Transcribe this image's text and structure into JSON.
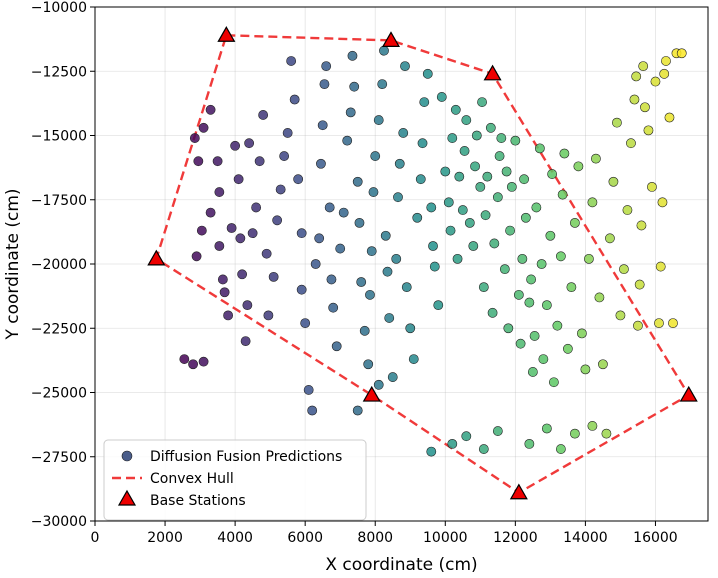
{
  "chart_data": {
    "type": "scatter",
    "title": "",
    "xlabel": "X coordinate (cm)",
    "ylabel": "Y coordinate (cm)",
    "xlim": [
      0,
      17500
    ],
    "ylim": [
      -30000,
      -10000
    ],
    "xticks": [
      0,
      2000,
      4000,
      6000,
      8000,
      10000,
      12000,
      14000,
      16000
    ],
    "yticks": [
      -30000,
      -27500,
      -25000,
      -22500,
      -20000,
      -17500,
      -15000,
      -12500,
      -10000
    ],
    "xtick_labels": [
      "0",
      "2000",
      "4000",
      "6000",
      "8000",
      "10000",
      "12000",
      "14000",
      "16000"
    ],
    "ytick_labels": [
      "−30000",
      "−27500",
      "−25000",
      "−22500",
      "−20000",
      "−17500",
      "−15000",
      "−12500",
      "−10000"
    ],
    "grid": true,
    "legend_position": "bottom-left",
    "legend": {
      "predictions": "Diffusion Fusion Predictions",
      "hull": "Convex Hull",
      "stations": "Base Stations"
    },
    "colors": {
      "hull": "#f03a3a",
      "station": "#ee0000",
      "legend_marker": "#4a5d8a",
      "colormap": "viridis"
    },
    "series": [
      {
        "name": "Base Stations",
        "points": [
          [
            3750,
            -11100
          ],
          [
            8450,
            -11300
          ],
          [
            11350,
            -12600
          ],
          [
            16950,
            -25100
          ],
          [
            12100,
            -28900
          ],
          [
            7900,
            -25100
          ],
          [
            1750,
            -19800
          ]
        ]
      },
      {
        "name": "Convex Hull",
        "points": [
          [
            3750,
            -11100
          ],
          [
            8450,
            -11300
          ],
          [
            11350,
            -12600
          ],
          [
            16950,
            -25100
          ],
          [
            12100,
            -28900
          ],
          [
            7900,
            -25100
          ],
          [
            1750,
            -19800
          ],
          [
            3750,
            -11100
          ]
        ]
      },
      {
        "name": "Diffusion Fusion Predictions",
        "note": "color encodes x coordinate (viridis)",
        "points": [
          [
            2550,
            -23700
          ],
          [
            2800,
            -23900
          ],
          [
            3100,
            -23800
          ],
          [
            2900,
            -19700
          ],
          [
            3050,
            -18700
          ],
          [
            3300,
            -18000
          ],
          [
            2950,
            -16000
          ],
          [
            3100,
            -14700
          ],
          [
            2850,
            -15100
          ],
          [
            3300,
            -14000
          ],
          [
            3500,
            -16000
          ],
          [
            3550,
            -17200
          ],
          [
            3700,
            -21100
          ],
          [
            3800,
            -22000
          ],
          [
            3900,
            -18600
          ],
          [
            3550,
            -19300
          ],
          [
            3650,
            -20600
          ],
          [
            4000,
            -15400
          ],
          [
            4100,
            -16700
          ],
          [
            4150,
            -19000
          ],
          [
            4200,
            -20400
          ],
          [
            4300,
            -23000
          ],
          [
            4350,
            -21600
          ],
          [
            4500,
            -18800
          ],
          [
            4600,
            -17800
          ],
          [
            4700,
            -16000
          ],
          [
            4400,
            -15300
          ],
          [
            4800,
            -14200
          ],
          [
            4900,
            -19600
          ],
          [
            4950,
            -22000
          ],
          [
            5100,
            -20500
          ],
          [
            5200,
            -18300
          ],
          [
            5300,
            -17100
          ],
          [
            5400,
            -15800
          ],
          [
            5500,
            -14900
          ],
          [
            5600,
            -12100
          ],
          [
            5700,
            -13600
          ],
          [
            5800,
            -16700
          ],
          [
            5900,
            -18800
          ],
          [
            5900,
            -21000
          ],
          [
            6000,
            -22300
          ],
          [
            6100,
            -24900
          ],
          [
            6200,
            -25700
          ],
          [
            6300,
            -20000
          ],
          [
            6400,
            -19000
          ],
          [
            6450,
            -16100
          ],
          [
            6500,
            -14600
          ],
          [
            6550,
            -13000
          ],
          [
            6600,
            -12300
          ],
          [
            6700,
            -17800
          ],
          [
            6750,
            -20600
          ],
          [
            6800,
            -21700
          ],
          [
            6900,
            -23200
          ],
          [
            7000,
            -19400
          ],
          [
            7100,
            -18000
          ],
          [
            7200,
            -15200
          ],
          [
            7300,
            -14100
          ],
          [
            7350,
            -11900
          ],
          [
            7400,
            -13100
          ],
          [
            7500,
            -16800
          ],
          [
            7550,
            -18400
          ],
          [
            7600,
            -20700
          ],
          [
            7700,
            -22600
          ],
          [
            7800,
            -23900
          ],
          [
            7850,
            -21200
          ],
          [
            7900,
            -19500
          ],
          [
            7950,
            -17200
          ],
          [
            8000,
            -15800
          ],
          [
            8100,
            -14400
          ],
          [
            8200,
            -13000
          ],
          [
            8250,
            -11700
          ],
          [
            8300,
            -18900
          ],
          [
            8350,
            -20300
          ],
          [
            8400,
            -22100
          ],
          [
            8500,
            -24400
          ],
          [
            8600,
            -19800
          ],
          [
            8650,
            -17400
          ],
          [
            8700,
            -16100
          ],
          [
            8800,
            -14900
          ],
          [
            8850,
            -12300
          ],
          [
            8900,
            -20900
          ],
          [
            9000,
            -22500
          ],
          [
            9100,
            -23700
          ],
          [
            9200,
            -18200
          ],
          [
            9300,
            -16700
          ],
          [
            9350,
            -15300
          ],
          [
            9400,
            -13700
          ],
          [
            9500,
            -12600
          ],
          [
            9600,
            -17800
          ],
          [
            9650,
            -19300
          ],
          [
            9700,
            -20100
          ],
          [
            9800,
            -21600
          ],
          [
            9900,
            -13500
          ],
          [
            10000,
            -16400
          ],
          [
            10100,
            -17600
          ],
          [
            10150,
            -18700
          ],
          [
            10200,
            -15100
          ],
          [
            10300,
            -14000
          ],
          [
            10350,
            -19800
          ],
          [
            10400,
            -16600
          ],
          [
            10500,
            -17900
          ],
          [
            10550,
            -15600
          ],
          [
            10600,
            -14400
          ],
          [
            10700,
            -18400
          ],
          [
            10800,
            -19300
          ],
          [
            10850,
            -16200
          ],
          [
            10900,
            -15000
          ],
          [
            11000,
            -17000
          ],
          [
            11050,
            -13700
          ],
          [
            11100,
            -20900
          ],
          [
            11150,
            -18100
          ],
          [
            11200,
            -16600
          ],
          [
            11300,
            -14700
          ],
          [
            11350,
            -21900
          ],
          [
            11400,
            -19200
          ],
          [
            11500,
            -17400
          ],
          [
            11550,
            -15800
          ],
          [
            11600,
            -15100
          ],
          [
            11700,
            -20200
          ],
          [
            11750,
            -16400
          ],
          [
            11800,
            -22500
          ],
          [
            11850,
            -18700
          ],
          [
            11900,
            -17000
          ],
          [
            12000,
            -15200
          ],
          [
            12100,
            -21200
          ],
          [
            12150,
            -23100
          ],
          [
            12200,
            -19800
          ],
          [
            12250,
            -16700
          ],
          [
            12300,
            -18200
          ],
          [
            12400,
            -21500
          ],
          [
            12450,
            -20600
          ],
          [
            12500,
            -24200
          ],
          [
            12550,
            -22800
          ],
          [
            12600,
            -17800
          ],
          [
            12700,
            -15500
          ],
          [
            12750,
            -20000
          ],
          [
            12800,
            -23700
          ],
          [
            12900,
            -21600
          ],
          [
            13000,
            -18900
          ],
          [
            13050,
            -16500
          ],
          [
            13100,
            -24600
          ],
          [
            13200,
            -22400
          ],
          [
            13300,
            -19700
          ],
          [
            13350,
            -17300
          ],
          [
            13400,
            -15700
          ],
          [
            13500,
            -23300
          ],
          [
            13600,
            -20900
          ],
          [
            13700,
            -18400
          ],
          [
            13800,
            -16200
          ],
          [
            13900,
            -22700
          ],
          [
            14000,
            -24100
          ],
          [
            14100,
            -19800
          ],
          [
            14200,
            -17600
          ],
          [
            14300,
            -15900
          ],
          [
            14400,
            -21300
          ],
          [
            14500,
            -23900
          ],
          [
            14600,
            -26600
          ],
          [
            14700,
            -19000
          ],
          [
            14800,
            -16800
          ],
          [
            14900,
            -14500
          ],
          [
            15000,
            -22000
          ],
          [
            15100,
            -20200
          ],
          [
            15200,
            -17900
          ],
          [
            15300,
            -15300
          ],
          [
            15400,
            -13600
          ],
          [
            15450,
            -12700
          ],
          [
            15500,
            -22400
          ],
          [
            15550,
            -20800
          ],
          [
            15600,
            -18500
          ],
          [
            15650,
            -12300
          ],
          [
            15700,
            -13900
          ],
          [
            15800,
            -14800
          ],
          [
            15900,
            -17000
          ],
          [
            16000,
            -12900
          ],
          [
            16100,
            -22300
          ],
          [
            16150,
            -20100
          ],
          [
            16200,
            -17600
          ],
          [
            16250,
            -12600
          ],
          [
            16300,
            -12100
          ],
          [
            16400,
            -14300
          ],
          [
            16500,
            -22300
          ],
          [
            16600,
            -11800
          ],
          [
            16750,
            -11800
          ],
          [
            9600,
            -27300
          ],
          [
            10200,
            -27000
          ],
          [
            10600,
            -26700
          ],
          [
            11100,
            -27200
          ],
          [
            11500,
            -26500
          ],
          [
            12400,
            -27000
          ],
          [
            12900,
            -26400
          ],
          [
            13300,
            -27200
          ],
          [
            13700,
            -26600
          ],
          [
            14200,
            -26300
          ],
          [
            7500,
            -25700
          ],
          [
            8100,
            -24700
          ]
        ]
      }
    ]
  }
}
